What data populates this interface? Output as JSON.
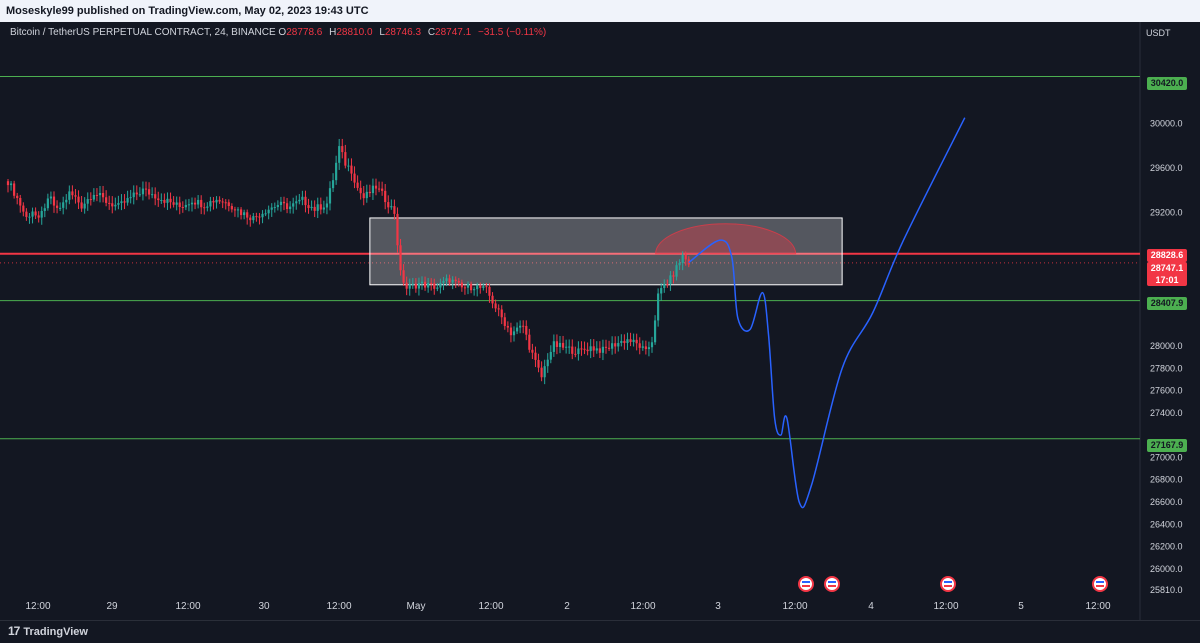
{
  "header": {
    "publish_line": "Moseskyle99 published on TradingView.com, May 02, 2023 19:43 UTC"
  },
  "legend": {
    "symbol": "Bitcoin / TetherUS PERPETUAL CONTRACT, 24, BINANCE",
    "open_label": "O",
    "open_value": "28778.6",
    "high_label": "H",
    "high_value": "28810.0",
    "low_label": "L",
    "low_value": "28746.3",
    "close_label": "C",
    "close_value": "28747.1",
    "change": "−31.5 (−0.11%)"
  },
  "price_axis": {
    "currency": "USDT",
    "ticks": [
      "30000.0",
      "29600.0",
      "29200.0",
      "28000.0",
      "27800.0",
      "27600.0",
      "27400.0",
      "27000.0",
      "26800.0",
      "26600.0",
      "26400.0",
      "26200.0",
      "26000.0",
      "25810.0"
    ]
  },
  "levels": {
    "resistance_top": "30420.0",
    "red_line": "28828.6",
    "current_price": "28747.1",
    "countdown": "17:01",
    "support_1": "28407.9",
    "support_2": "27167.9"
  },
  "time_axis": {
    "labels": [
      "12:00",
      "29",
      "12:00",
      "30",
      "12:00",
      "May",
      "12:00",
      "2",
      "12:00",
      "3",
      "12:00",
      "4",
      "12:00",
      "5",
      "12:00"
    ]
  },
  "footer": {
    "brand": "TradingView",
    "brand_mark": "17"
  },
  "colors": {
    "background": "#131722",
    "up": "#26a69a",
    "down": "#f23645",
    "level_green": "#4caf50",
    "projection": "#2962ff",
    "zone": "#ffffff"
  },
  "event_icons": [
    "us-flag-icon",
    "us-flag-icon",
    "us-flag-icon",
    "us-flag-icon"
  ],
  "chart_data": {
    "type": "candlestick",
    "symbol": "BTCUSDT.P",
    "interval": "24",
    "y_range": [
      25810,
      30550
    ],
    "x_range": [
      "2023-04-28 08:00",
      "2023-05-05 20:00"
    ],
    "horizontal_levels": [
      30420.0,
      28828.6,
      28407.9,
      27167.9
    ],
    "zone": {
      "from_time": "2023-04-30 19:00",
      "to_time": "2023-05-04 00:00",
      "top": 29150,
      "bottom": 28550
    },
    "close_path": [
      [
        "2023-04-28 08:00",
        29480
      ],
      [
        "2023-04-28 09:00",
        29380
      ],
      [
        "2023-04-28 10:00",
        29270
      ],
      [
        "2023-04-28 11:00",
        29150
      ],
      [
        "2023-04-28 12:00",
        29220
      ],
      [
        "2023-04-28 13:00",
        29120
      ],
      [
        "2023-04-28 14:00",
        29260
      ],
      [
        "2023-04-28 15:00",
        29320
      ],
      [
        "2023-04-28 16:00",
        29210
      ],
      [
        "2023-04-28 17:00",
        29280
      ],
      [
        "2023-04-28 18:00",
        29370
      ],
      [
        "2023-04-28 19:00",
        29330
      ],
      [
        "2023-04-28 20:00",
        29260
      ],
      [
        "2023-04-28 22:00",
        29380
      ],
      [
        "2023-04-29 00:00",
        29300
      ],
      [
        "2023-04-29 02:00",
        29250
      ],
      [
        "2023-04-29 04:00",
        29330
      ],
      [
        "2023-04-29 06:00",
        29400
      ],
      [
        "2023-04-29 08:00",
        29350
      ],
      [
        "2023-04-29 10:00",
        29300
      ],
      [
        "2023-04-29 12:00",
        29250
      ],
      [
        "2023-04-29 14:00",
        29310
      ],
      [
        "2023-04-29 16:00",
        29270
      ],
      [
        "2023-04-29 18:00",
        29320
      ],
      [
        "2023-04-29 20:00",
        29280
      ],
      [
        "2023-04-29 22:00",
        29200
      ],
      [
        "2023-04-30 00:00",
        29150
      ],
      [
        "2023-04-30 02:00",
        29220
      ],
      [
        "2023-04-30 04:00",
        29270
      ],
      [
        "2023-04-30 06:00",
        29250
      ],
      [
        "2023-04-30 08:00",
        29310
      ],
      [
        "2023-04-30 10:00",
        29230
      ],
      [
        "2023-04-30 12:00",
        29280
      ],
      [
        "2023-04-30 13:00",
        29500
      ],
      [
        "2023-04-30 14:00",
        29780
      ],
      [
        "2023-04-30 15:00",
        29640
      ],
      [
        "2023-04-30 16:00",
        29580
      ],
      [
        "2023-04-30 17:00",
        29420
      ],
      [
        "2023-04-30 18:00",
        29330
      ],
      [
        "2023-04-30 19:00",
        29380
      ],
      [
        "2023-04-30 20:00",
        29430
      ],
      [
        "2023-04-30 21:00",
        29360
      ],
      [
        "2023-04-30 22:00",
        29280
      ],
      [
        "2023-04-30 23:00",
        29200
      ],
      [
        "2023-05-01 00:00",
        28650
      ],
      [
        "2023-05-01 01:00",
        28520
      ],
      [
        "2023-05-01 03:00",
        28560
      ],
      [
        "2023-05-01 06:00",
        28530
      ],
      [
        "2023-05-01 08:00",
        28600
      ],
      [
        "2023-05-01 10:00",
        28520
      ],
      [
        "2023-05-01 12:00",
        28540
      ],
      [
        "2023-05-01 14:00",
        28500
      ],
      [
        "2023-05-01 16:00",
        28300
      ],
      [
        "2023-05-01 18:00",
        28120
      ],
      [
        "2023-05-01 20:00",
        28180
      ],
      [
        "2023-05-01 21:00",
        28000
      ],
      [
        "2023-05-01 22:00",
        27850
      ],
      [
        "2023-05-01 23:00",
        27720
      ],
      [
        "2023-05-02 00:00",
        27900
      ],
      [
        "2023-05-02 01:00",
        28010
      ],
      [
        "2023-05-02 03:00",
        27980
      ],
      [
        "2023-05-02 05:00",
        27950
      ],
      [
        "2023-05-02 07:00",
        27990
      ],
      [
        "2023-05-02 09:00",
        27960
      ],
      [
        "2023-05-02 11:00",
        28020
      ],
      [
        "2023-05-02 13:00",
        28060
      ],
      [
        "2023-05-02 15:00",
        28000
      ],
      [
        "2023-05-02 16:00",
        27940
      ],
      [
        "2023-05-02 17:00",
        28050
      ],
      [
        "2023-05-02 18:00",
        28450
      ],
      [
        "2023-05-02 19:00",
        28550
      ],
      [
        "2023-05-02 20:00",
        28600
      ],
      [
        "2023-05-02 21:00",
        28700
      ],
      [
        "2023-05-02 22:00",
        28810
      ],
      [
        "2023-05-02 23:00",
        28747
      ]
    ],
    "projection_path": [
      [
        "2023-05-02 23:00",
        28750
      ],
      [
        "2023-05-03 04:00",
        28950
      ],
      [
        "2023-05-03 06:00",
        28800
      ],
      [
        "2023-05-03 07:00",
        28250
      ],
      [
        "2023-05-03 09:00",
        28150
      ],
      [
        "2023-05-03 11:00",
        28480
      ],
      [
        "2023-05-03 12:00",
        28100
      ],
      [
        "2023-05-03 13:00",
        27350
      ],
      [
        "2023-05-03 14:00",
        27200
      ],
      [
        "2023-05-03 15:00",
        27350
      ],
      [
        "2023-05-03 17:00",
        26600
      ],
      [
        "2023-05-03 19:00",
        26750
      ],
      [
        "2023-05-04 00:00",
        27800
      ],
      [
        "2023-05-04 05:00",
        28300
      ],
      [
        "2023-05-04 10:00",
        28950
      ],
      [
        "2023-05-04 20:00",
        30050
      ]
    ]
  }
}
